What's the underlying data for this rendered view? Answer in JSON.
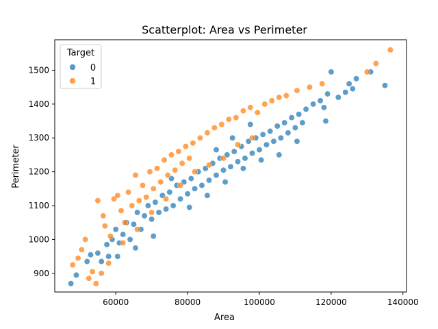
{
  "chart_data": {
    "type": "scatter",
    "title": "Scatterplot: Area vs Perimeter",
    "xlabel": "Area",
    "ylabel": "Perimeter",
    "xlim": [
      43000,
      141000
    ],
    "ylim": [
      845,
      1590
    ],
    "xticks": [
      60000,
      80000,
      100000,
      120000,
      140000
    ],
    "yticks": [
      900,
      1000,
      1100,
      1200,
      1300,
      1400,
      1500
    ],
    "xtick_labels": [
      "60000",
      "80000",
      "100000",
      "120000",
      "140000"
    ],
    "ytick_labels": [
      "900",
      "1000",
      "1100",
      "1200",
      "1300",
      "1400",
      "1500"
    ],
    "grid": false,
    "legend": {
      "title": "Target",
      "placement": "top-left",
      "entries": [
        "0",
        "1"
      ]
    },
    "series": [
      {
        "name": "0",
        "color": "#1f77b4",
        "points": [
          [
            47500,
            870
          ],
          [
            49000,
            895
          ],
          [
            52000,
            935
          ],
          [
            53000,
            955
          ],
          [
            55000,
            960
          ],
          [
            56000,
            935
          ],
          [
            57500,
            985
          ],
          [
            58000,
            950
          ],
          [
            59000,
            1000
          ],
          [
            60000,
            1030
          ],
          [
            61000,
            990
          ],
          [
            62000,
            1015
          ],
          [
            63000,
            1050
          ],
          [
            64000,
            1000
          ],
          [
            65000,
            1045
          ],
          [
            66000,
            1080
          ],
          [
            67000,
            1030
          ],
          [
            68000,
            1070
          ],
          [
            69000,
            1100
          ],
          [
            70000,
            1060
          ],
          [
            71000,
            1110
          ],
          [
            72000,
            1080
          ],
          [
            73000,
            1130
          ],
          [
            74000,
            1090
          ],
          [
            75000,
            1140
          ],
          [
            76000,
            1100
          ],
          [
            77000,
            1160
          ],
          [
            78000,
            1120
          ],
          [
            79000,
            1170
          ],
          [
            80000,
            1135
          ],
          [
            81000,
            1180
          ],
          [
            82000,
            1150
          ],
          [
            83000,
            1200
          ],
          [
            84000,
            1160
          ],
          [
            85000,
            1210
          ],
          [
            86000,
            1175
          ],
          [
            87000,
            1225
          ],
          [
            88000,
            1190
          ],
          [
            89000,
            1240
          ],
          [
            90000,
            1205
          ],
          [
            91000,
            1250
          ],
          [
            92000,
            1215
          ],
          [
            93000,
            1260
          ],
          [
            94000,
            1230
          ],
          [
            95000,
            1275
          ],
          [
            96000,
            1240
          ],
          [
            97000,
            1290
          ],
          [
            98000,
            1255
          ],
          [
            99000,
            1300
          ],
          [
            100000,
            1265
          ],
          [
            101000,
            1310
          ],
          [
            102000,
            1280
          ],
          [
            103000,
            1320
          ],
          [
            104000,
            1290
          ],
          [
            105000,
            1335
          ],
          [
            106000,
            1300
          ],
          [
            107000,
            1345
          ],
          [
            108000,
            1315
          ],
          [
            109000,
            1360
          ],
          [
            110000,
            1330
          ],
          [
            111000,
            1370
          ],
          [
            112000,
            1345
          ],
          [
            113000,
            1385
          ],
          [
            115000,
            1400
          ],
          [
            117000,
            1410
          ],
          [
            118000,
            1390
          ],
          [
            119000,
            1430
          ],
          [
            120000,
            1495
          ],
          [
            122000,
            1420
          ],
          [
            124000,
            1435
          ],
          [
            125000,
            1460
          ],
          [
            126000,
            1445
          ],
          [
            127000,
            1475
          ],
          [
            131000,
            1495
          ],
          [
            135000,
            1455
          ],
          [
            75500,
            1180
          ],
          [
            80500,
            1095
          ],
          [
            85500,
            1130
          ],
          [
            90500,
            1170
          ],
          [
            95500,
            1210
          ],
          [
            70500,
            1010
          ],
          [
            65500,
            975
          ],
          [
            60500,
            950
          ],
          [
            100500,
            1235
          ],
          [
            105500,
            1250
          ],
          [
            110500,
            1290
          ],
          [
            118500,
            1350
          ],
          [
            97500,
            1340
          ],
          [
            92500,
            1300
          ],
          [
            88000,
            1265
          ]
        ]
      },
      {
        "name": "1",
        "color": "#ff7f0e",
        "points": [
          [
            48000,
            925
          ],
          [
            49500,
            945
          ],
          [
            50500,
            970
          ],
          [
            51500,
            1000
          ],
          [
            52500,
            885
          ],
          [
            53500,
            905
          ],
          [
            54500,
            870
          ],
          [
            55000,
            1115
          ],
          [
            56500,
            1070
          ],
          [
            57000,
            1040
          ],
          [
            58500,
            1010
          ],
          [
            59500,
            1120
          ],
          [
            60500,
            1130
          ],
          [
            61500,
            1085
          ],
          [
            62500,
            1050
          ],
          [
            63500,
            1140
          ],
          [
            64500,
            1100
          ],
          [
            65500,
            1190
          ],
          [
            66500,
            1115
          ],
          [
            67500,
            1160
          ],
          [
            68500,
            1125
          ],
          [
            69500,
            1200
          ],
          [
            70500,
            1150
          ],
          [
            71500,
            1210
          ],
          [
            72500,
            1170
          ],
          [
            73500,
            1235
          ],
          [
            74500,
            1190
          ],
          [
            75500,
            1250
          ],
          [
            76500,
            1205
          ],
          [
            77500,
            1260
          ],
          [
            78500,
            1225
          ],
          [
            79500,
            1275
          ],
          [
            80500,
            1240
          ],
          [
            81500,
            1285
          ],
          [
            83500,
            1300
          ],
          [
            85500,
            1315
          ],
          [
            87500,
            1330
          ],
          [
            89500,
            1340
          ],
          [
            91500,
            1355
          ],
          [
            93500,
            1360
          ],
          [
            95500,
            1380
          ],
          [
            97500,
            1390
          ],
          [
            99500,
            1375
          ],
          [
            101500,
            1400
          ],
          [
            103500,
            1410
          ],
          [
            105500,
            1420
          ],
          [
            107500,
            1425
          ],
          [
            110500,
            1440
          ],
          [
            114000,
            1450
          ],
          [
            117500,
            1460
          ],
          [
            130000,
            1495
          ],
          [
            132500,
            1520
          ],
          [
            136500,
            1560
          ],
          [
            56000,
            900
          ],
          [
            58000,
            930
          ],
          [
            62000,
            990
          ],
          [
            66000,
            1030
          ],
          [
            70000,
            1080
          ],
          [
            74000,
            1120
          ],
          [
            78000,
            1160
          ],
          [
            82000,
            1200
          ],
          [
            86000,
            1220
          ],
          [
            90000,
            1240
          ],
          [
            94000,
            1280
          ],
          [
            98000,
            1300
          ]
        ]
      }
    ]
  }
}
